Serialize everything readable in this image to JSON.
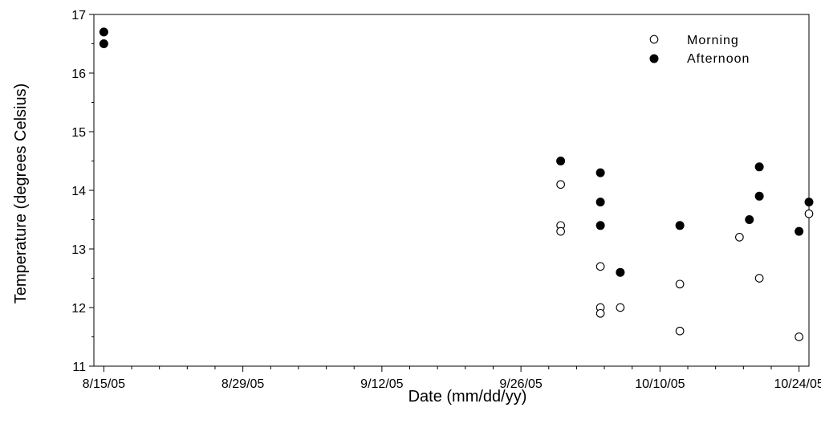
{
  "chart_data": {
    "type": "scatter",
    "xlabel": "Date (mm/dd/yy)",
    "ylabel": "Temperature (degrees Celsius)",
    "xlim": [
      "2005-08-14",
      "2005-10-25"
    ],
    "ylim": [
      11,
      17
    ],
    "x_ticks": [
      {
        "date": "2005-08-15",
        "label": "8/15/05"
      },
      {
        "date": "2005-08-29",
        "label": "8/29/05"
      },
      {
        "date": "2005-09-12",
        "label": "9/12/05"
      },
      {
        "date": "2005-09-26",
        "label": "9/26/05"
      },
      {
        "date": "2005-10-10",
        "label": "10/10/05"
      },
      {
        "date": "2005-10-24",
        "label": "10/24/05"
      }
    ],
    "y_ticks": [
      11,
      12,
      13,
      14,
      15,
      16,
      17
    ],
    "grid": false,
    "legend_position": "top-right",
    "series": [
      {
        "name": "Morning",
        "marker": "open-circle",
        "points": [
          {
            "x": "2005-09-30",
            "y": 14.1
          },
          {
            "x": "2005-09-30",
            "y": 13.4
          },
          {
            "x": "2005-09-30",
            "y": 13.3
          },
          {
            "x": "2005-10-04",
            "y": 12.7
          },
          {
            "x": "2005-10-04",
            "y": 12.0
          },
          {
            "x": "2005-10-04",
            "y": 11.9
          },
          {
            "x": "2005-10-06",
            "y": 12.0
          },
          {
            "x": "2005-10-12",
            "y": 12.4
          },
          {
            "x": "2005-10-12",
            "y": 11.6
          },
          {
            "x": "2005-10-18",
            "y": 13.2
          },
          {
            "x": "2005-10-20",
            "y": 12.5
          },
          {
            "x": "2005-10-24",
            "y": 11.5
          },
          {
            "x": "2005-10-25",
            "y": 13.6
          }
        ]
      },
      {
        "name": "Afternoon",
        "marker": "filled-circle",
        "points": [
          {
            "x": "2005-08-15",
            "y": 16.7
          },
          {
            "x": "2005-08-15",
            "y": 16.5
          },
          {
            "x": "2005-09-30",
            "y": 14.5
          },
          {
            "x": "2005-10-04",
            "y": 14.3
          },
          {
            "x": "2005-10-04",
            "y": 13.8
          },
          {
            "x": "2005-10-04",
            "y": 13.4
          },
          {
            "x": "2005-10-06",
            "y": 12.6
          },
          {
            "x": "2005-10-12",
            "y": 13.4
          },
          {
            "x": "2005-10-19",
            "y": 13.5
          },
          {
            "x": "2005-10-20",
            "y": 14.4
          },
          {
            "x": "2005-10-20",
            "y": 13.9
          },
          {
            "x": "2005-10-24",
            "y": 13.3
          },
          {
            "x": "2005-10-25",
            "y": 13.8
          }
        ]
      }
    ]
  }
}
